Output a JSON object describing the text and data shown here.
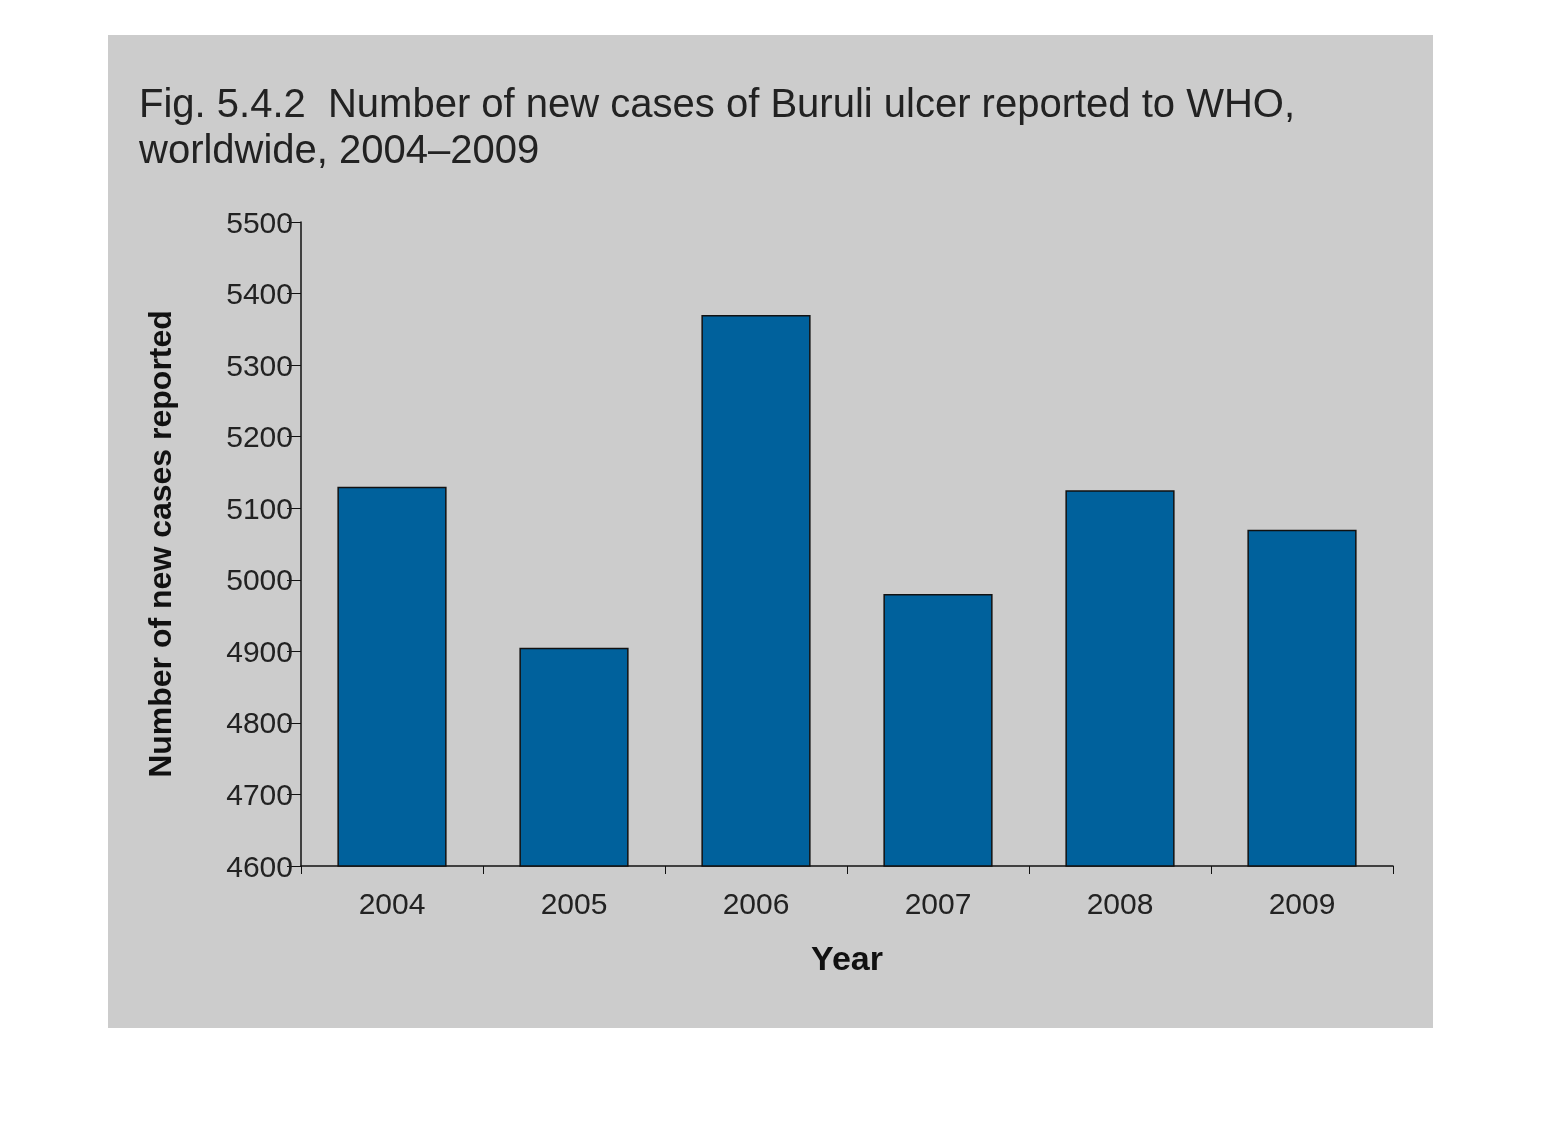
{
  "chart_data": {
    "type": "bar",
    "title": "Fig. 5.4.2  Number of new cases of Buruli ulcer reported to WHO,\nworldwide, 2004–2009",
    "xlabel": "Year",
    "ylabel": "Number of new cases reported",
    "categories": [
      "2004",
      "2005",
      "2006",
      "2007",
      "2008",
      "2009"
    ],
    "values": [
      5130,
      4905,
      5370,
      4980,
      5125,
      5070
    ],
    "color": "#00619c",
    "ylim": [
      4600,
      5500
    ],
    "yticks": [
      4600,
      4700,
      4800,
      4900,
      5000,
      5100,
      5200,
      5300,
      5400,
      5500
    ],
    "grid": false
  }
}
